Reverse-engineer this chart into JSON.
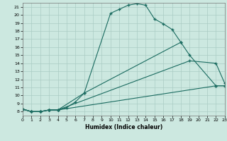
{
  "xlabel": "Humidex (Indice chaleur)",
  "bg_color": "#cce8e0",
  "grid_color": "#aaccC4",
  "line_color": "#1a6b60",
  "xlim": [
    0,
    23
  ],
  "ylim": [
    7.5,
    21.5
  ],
  "xticks": [
    0,
    1,
    2,
    3,
    4,
    5,
    6,
    7,
    8,
    9,
    10,
    11,
    12,
    13,
    14,
    15,
    16,
    17,
    18,
    19,
    20,
    21,
    22,
    23
  ],
  "yticks": [
    8,
    9,
    10,
    11,
    12,
    13,
    14,
    15,
    16,
    17,
    18,
    19,
    20,
    21
  ],
  "c1_x": [
    0,
    1,
    2,
    3,
    4,
    5,
    6,
    7,
    10,
    11,
    12,
    13,
    14,
    15,
    16,
    17,
    18
  ],
  "c1_y": [
    8.3,
    8.0,
    8.0,
    8.2,
    8.2,
    8.5,
    9.2,
    10.3,
    20.2,
    20.7,
    21.2,
    21.4,
    21.2,
    19.5,
    18.9,
    18.2,
    16.6
  ],
  "c2_x": [
    0,
    1,
    2,
    3,
    4,
    7,
    18,
    19,
    22,
    23
  ],
  "c2_y": [
    8.3,
    8.0,
    8.0,
    8.2,
    8.2,
    10.3,
    16.6,
    15.0,
    11.2,
    11.2
  ],
  "c3_x": [
    0,
    1,
    2,
    3,
    4,
    22,
    23
  ],
  "c3_y": [
    8.3,
    8.0,
    8.0,
    8.2,
    8.2,
    11.2,
    11.2
  ],
  "c4_x": [
    0,
    1,
    2,
    3,
    4,
    19,
    22,
    23
  ],
  "c4_y": [
    8.3,
    8.0,
    8.0,
    8.2,
    8.2,
    14.3,
    14.0,
    11.5
  ]
}
